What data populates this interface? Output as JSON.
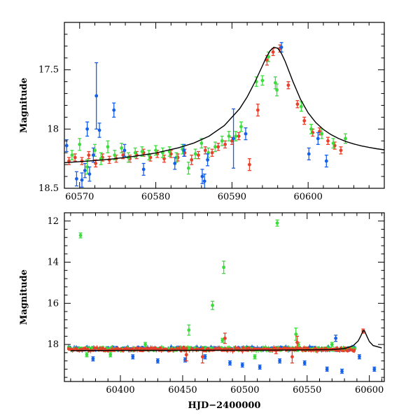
{
  "chart_data": [
    {
      "type": "scatter",
      "panel": "top",
      "xlabel": "",
      "ylabel": "Magnitude",
      "xlim": [
        60568,
        60610
      ],
      "ylim": [
        18.5,
        17.1
      ],
      "y_inverted": true,
      "xticks": [
        60570,
        60580,
        60590,
        60600
      ],
      "yticks": [
        17.5,
        18,
        18.5
      ],
      "grid": false,
      "legend": "none",
      "series": [
        {
          "color": "#e8402a",
          "points": [
            [
              60568.6,
              18.27,
              0.03
            ],
            [
              60569.4,
              18.24,
              0.03
            ],
            [
              60570.3,
              18.27,
              0.03
            ],
            [
              60571.2,
              18.22,
              0.03
            ],
            [
              60572.1,
              18.29,
              0.03
            ],
            [
              60573.0,
              18.24,
              0.03
            ],
            [
              60573.9,
              18.26,
              0.03
            ],
            [
              60574.8,
              18.25,
              0.03
            ],
            [
              60575.7,
              18.22,
              0.03
            ],
            [
              60576.6,
              18.25,
              0.03
            ],
            [
              60577.5,
              18.22,
              0.03
            ],
            [
              60578.4,
              18.2,
              0.03
            ],
            [
              60579.3,
              18.24,
              0.03
            ],
            [
              60580.2,
              18.21,
              0.03
            ],
            [
              60581.1,
              18.25,
              0.03
            ],
            [
              60582.0,
              18.21,
              0.03
            ],
            [
              60582.9,
              18.24,
              0.03
            ],
            [
              60583.8,
              18.2,
              0.03
            ],
            [
              60584.7,
              18.26,
              0.04
            ],
            [
              60585.6,
              18.22,
              0.03
            ],
            [
              60586.5,
              18.18,
              0.03
            ],
            [
              60587.4,
              18.2,
              0.03
            ],
            [
              60588.2,
              18.15,
              0.03
            ],
            [
              60589.1,
              18.13,
              0.03
            ],
            [
              60590.0,
              18.1,
              0.03
            ],
            [
              60590.9,
              18.06,
              0.03
            ],
            [
              60592.3,
              18.3,
              0.05
            ],
            [
              60593.4,
              17.84,
              0.05
            ],
            [
              60594.6,
              17.42,
              0.04
            ],
            [
              60595.4,
              17.35,
              0.03
            ],
            [
              60596.3,
              17.32,
              0.03
            ],
            [
              60597.4,
              17.63,
              0.03
            ],
            [
              60598.6,
              17.79,
              0.03
            ],
            [
              60599.5,
              17.93,
              0.03
            ],
            [
              60600.6,
              18.03,
              0.03
            ],
            [
              60601.5,
              18.02,
              0.03
            ],
            [
              60602.6,
              18.1,
              0.03
            ],
            [
              60603.5,
              18.14,
              0.03
            ],
            [
              60604.3,
              18.18,
              0.03
            ]
          ]
        },
        {
          "color": "#3cdc3c",
          "points": [
            [
              60569.0,
              18.22,
              0.04
            ],
            [
              60570.0,
              18.13,
              0.05
            ],
            [
              60571.0,
              18.32,
              0.06
            ],
            [
              60572.0,
              18.18,
              0.05
            ],
            [
              60572.8,
              18.25,
              0.05
            ],
            [
              60573.7,
              18.15,
              0.05
            ],
            [
              60574.6,
              18.22,
              0.04
            ],
            [
              60575.5,
              18.16,
              0.04
            ],
            [
              60576.4,
              18.24,
              0.04
            ],
            [
              60577.3,
              18.2,
              0.04
            ],
            [
              60578.2,
              18.19,
              0.04
            ],
            [
              60579.1,
              18.22,
              0.04
            ],
            [
              60580.0,
              18.18,
              0.04
            ],
            [
              60580.9,
              18.2,
              0.04
            ],
            [
              60581.8,
              18.19,
              0.04
            ],
            [
              60582.7,
              18.24,
              0.04
            ],
            [
              60583.5,
              18.17,
              0.04
            ],
            [
              60584.3,
              18.33,
              0.05
            ],
            [
              60585.2,
              18.21,
              0.04
            ],
            [
              60586.0,
              18.12,
              0.04
            ],
            [
              60586.9,
              18.2,
              0.04
            ],
            [
              60587.8,
              18.15,
              0.04
            ],
            [
              60588.7,
              18.1,
              0.04
            ],
            [
              60589.6,
              18.06,
              0.04
            ],
            [
              60590.5,
              18.06,
              0.04
            ],
            [
              60591.2,
              17.98,
              0.04
            ],
            [
              60593.2,
              17.6,
              0.04
            ],
            [
              60594.0,
              17.59,
              0.04
            ],
            [
              60594.8,
              17.39,
              0.04
            ],
            [
              60595.7,
              17.61,
              0.05
            ],
            [
              60595.9,
              17.67,
              0.05
            ],
            [
              60599.1,
              17.81,
              0.04
            ],
            [
              60600.4,
              18.0,
              0.04
            ],
            [
              60601.8,
              18.04,
              0.04
            ],
            [
              60603.3,
              18.12,
              0.04
            ],
            [
              60604.9,
              18.08,
              0.04
            ]
          ]
        },
        {
          "color": "#1560ea",
          "points": [
            [
              60568.3,
              18.14,
              0.05
            ],
            [
              60569.6,
              18.42,
              0.06
            ],
            [
              60570.3,
              18.43,
              0.06
            ],
            [
              60570.7,
              18.35,
              0.06
            ],
            [
              60571.0,
              18.0,
              0.06
            ],
            [
              60571.3,
              18.38,
              0.06
            ],
            [
              60571.8,
              18.22,
              0.06
            ],
            [
              60572.2,
              17.72,
              0.28
            ],
            [
              60572.6,
              18.01,
              0.06
            ],
            [
              60574.5,
              17.84,
              0.06
            ],
            [
              60575.9,
              18.18,
              0.05
            ],
            [
              60578.4,
              18.34,
              0.05
            ],
            [
              60582.5,
              18.29,
              0.05
            ],
            [
              60583.7,
              18.18,
              0.05
            ],
            [
              60586.1,
              18.4,
              0.06
            ],
            [
              60586.4,
              18.44,
              0.06
            ],
            [
              60586.8,
              18.26,
              0.05
            ],
            [
              60590.2,
              18.08,
              0.25
            ],
            [
              60591.8,
              18.04,
              0.05
            ],
            [
              60596.5,
              17.31,
              0.04
            ],
            [
              60600.1,
              18.21,
              0.05
            ],
            [
              60601.3,
              18.08,
              0.05
            ],
            [
              60602.4,
              18.27,
              0.05
            ]
          ]
        }
      ],
      "model_curve": {
        "color": "#000000",
        "points": [
          [
            60568,
            18.284
          ],
          [
            60571,
            18.271
          ],
          [
            60574,
            18.254
          ],
          [
            60577,
            18.232
          ],
          [
            60580,
            18.202
          ],
          [
            60583,
            18.158
          ],
          [
            60585,
            18.118
          ],
          [
            60587,
            18.06
          ],
          [
            60589,
            17.97
          ],
          [
            60591,
            17.829
          ],
          [
            60592,
            17.729
          ],
          [
            60593,
            17.605
          ],
          [
            60594,
            17.466
          ],
          [
            60594.5,
            17.396
          ],
          [
            60595,
            17.34
          ],
          [
            60595.5,
            17.31
          ],
          [
            60596,
            17.318
          ],
          [
            60596.5,
            17.362
          ],
          [
            60597,
            17.431
          ],
          [
            60598,
            17.598
          ],
          [
            60599,
            17.749
          ],
          [
            60600,
            17.863
          ],
          [
            60601,
            17.945
          ],
          [
            60602,
            18.004
          ],
          [
            60603,
            18.047
          ],
          [
            60604,
            18.08
          ],
          [
            60605,
            18.106
          ],
          [
            60606,
            18.126
          ],
          [
            60607,
            18.142
          ],
          [
            60608,
            18.155
          ],
          [
            60609,
            18.166
          ],
          [
            60610,
            18.175
          ]
        ]
      }
    },
    {
      "type": "scatter",
      "panel": "bottom",
      "xlabel": "HJD−2400000",
      "ylabel": "Magnitude",
      "xlim": [
        60355,
        60612
      ],
      "ylim": [
        19.8,
        11.6
      ],
      "y_inverted": true,
      "xticks": [
        60400,
        60450,
        60500,
        60550,
        60600
      ],
      "yticks": [
        12,
        14,
        16,
        18
      ],
      "grid": false,
      "legend": "none",
      "series": [
        {
          "color": "#3cdc3c",
          "points": [
            [
              60368,
              12.7,
              0.12
            ],
            [
              60455,
              17.3,
              0.25
            ],
            [
              60474,
              16.1,
              0.2
            ],
            [
              60483,
              14.25,
              0.3
            ],
            [
              60526,
              12.1,
              0.15
            ],
            [
              60541,
              17.5,
              0.3
            ],
            [
              60373,
              18.5,
              0.1
            ],
            [
              60392,
              18.5,
              0.1
            ],
            [
              60420,
              18.0,
              0.1
            ],
            [
              60455,
              18.2,
              0.1
            ],
            [
              60482,
              17.8,
              0.1
            ],
            [
              60508,
              18.6,
              0.1
            ],
            [
              60543,
              18.0,
              0.1
            ],
            [
              60570,
              18.0,
              0.1
            ]
          ]
        },
        {
          "color": "#1560ea",
          "points": [
            [
              60378,
              18.7,
              0.1
            ],
            [
              60410,
              18.6,
              0.1
            ],
            [
              60430,
              18.8,
              0.1
            ],
            [
              60452,
              18.75,
              0.1
            ],
            [
              60468,
              18.6,
              0.1
            ],
            [
              60488,
              18.9,
              0.1
            ],
            [
              60498,
              19.0,
              0.1
            ],
            [
              60512,
              19.1,
              0.1
            ],
            [
              60528,
              18.8,
              0.1
            ],
            [
              60548,
              18.9,
              0.1
            ],
            [
              60566,
              19.2,
              0.1
            ],
            [
              60578,
              19.3,
              0.1
            ],
            [
              60592,
              18.6,
              0.1
            ],
            [
              60604,
              19.2,
              0.1
            ],
            [
              60573,
              17.7,
              0.15
            ]
          ]
        },
        {
          "color": "#e8402a",
          "points": [
            [
              60453,
              18.5,
              0.3
            ],
            [
              60466,
              18.6,
              0.3
            ],
            [
              60484,
              17.7,
              0.25
            ],
            [
              60525,
              18.3,
              0.15
            ],
            [
              60538,
              18.6,
              0.3
            ],
            [
              60542,
              17.9,
              0.3
            ],
            [
              60595,
              17.35,
              0.1
            ]
          ]
        }
      ],
      "baseline_band": {
        "mag": 18.22,
        "scatter": 0.08,
        "colors": [
          "#1560ea",
          "#3cdc3c",
          "#e8402a"
        ]
      },
      "model_curve": {
        "color": "#000000",
        "points": [
          [
            60360,
            18.3
          ],
          [
            60400,
            18.29
          ],
          [
            60450,
            18.285
          ],
          [
            60500,
            18.28
          ],
          [
            60540,
            18.27
          ],
          [
            60570,
            18.25
          ],
          [
            60580,
            18.2
          ],
          [
            60587,
            18.06
          ],
          [
            60591,
            17.83
          ],
          [
            60593,
            17.6
          ],
          [
            60595,
            17.34
          ],
          [
            60596,
            17.32
          ],
          [
            60598,
            17.6
          ],
          [
            60600,
            17.86
          ],
          [
            60603,
            18.05
          ],
          [
            60610,
            18.17
          ]
        ]
      }
    }
  ]
}
